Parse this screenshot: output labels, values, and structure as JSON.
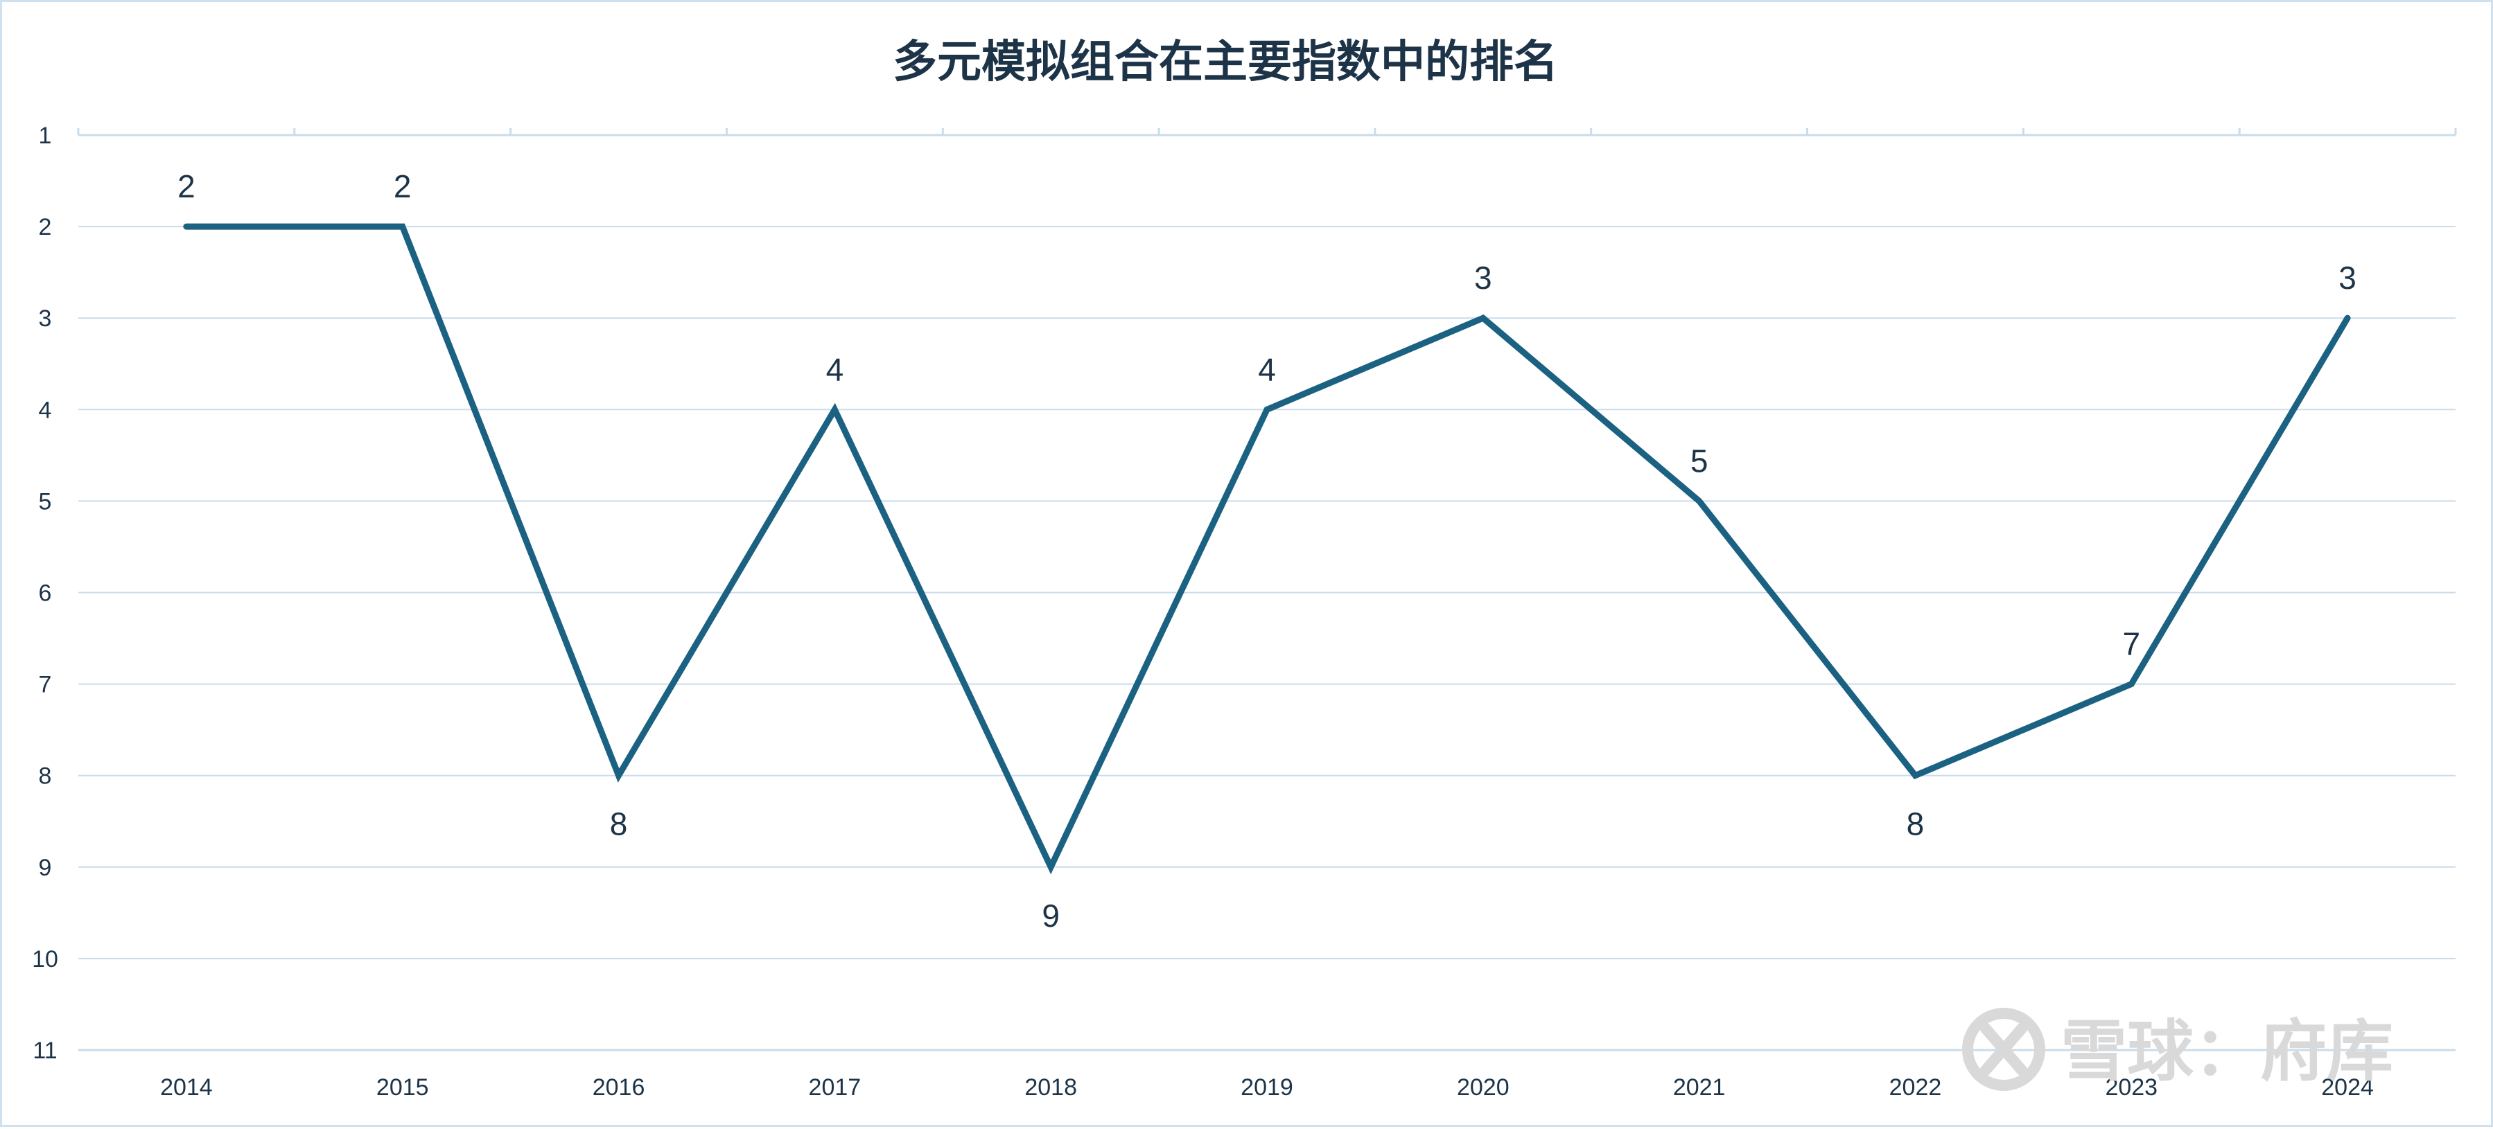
{
  "colors": {
    "line": "#1b6182",
    "grid": "#c9dceb",
    "text": "#1d3347",
    "watermark": "#d9d9d9"
  },
  "watermark": {
    "icon": "snowball-logo-icon",
    "text": "雪球：府库"
  },
  "chart_data": {
    "type": "line",
    "title": "多元模拟组合在主要指数中的排名",
    "xlabel": "",
    "ylabel": "",
    "categories": [
      "2014",
      "2015",
      "2016",
      "2017",
      "2018",
      "2019",
      "2020",
      "2021",
      "2022",
      "2023",
      "2024"
    ],
    "series": [
      {
        "values": [
          2,
          2,
          8,
          4,
          9,
          4,
          3,
          5,
          8,
          7,
          3
        ]
      }
    ],
    "data_labels": [
      "2",
      "2",
      "8",
      "4",
      "9",
      "4",
      "3",
      "5",
      "8",
      "7",
      "3"
    ],
    "ylim": [
      1,
      11
    ],
    "y_reversed": true,
    "y_ticks": [
      "1",
      "2",
      "3",
      "4",
      "5",
      "6",
      "7",
      "8",
      "9",
      "10",
      "11"
    ],
    "grid": "horizontal",
    "legend": "none"
  }
}
